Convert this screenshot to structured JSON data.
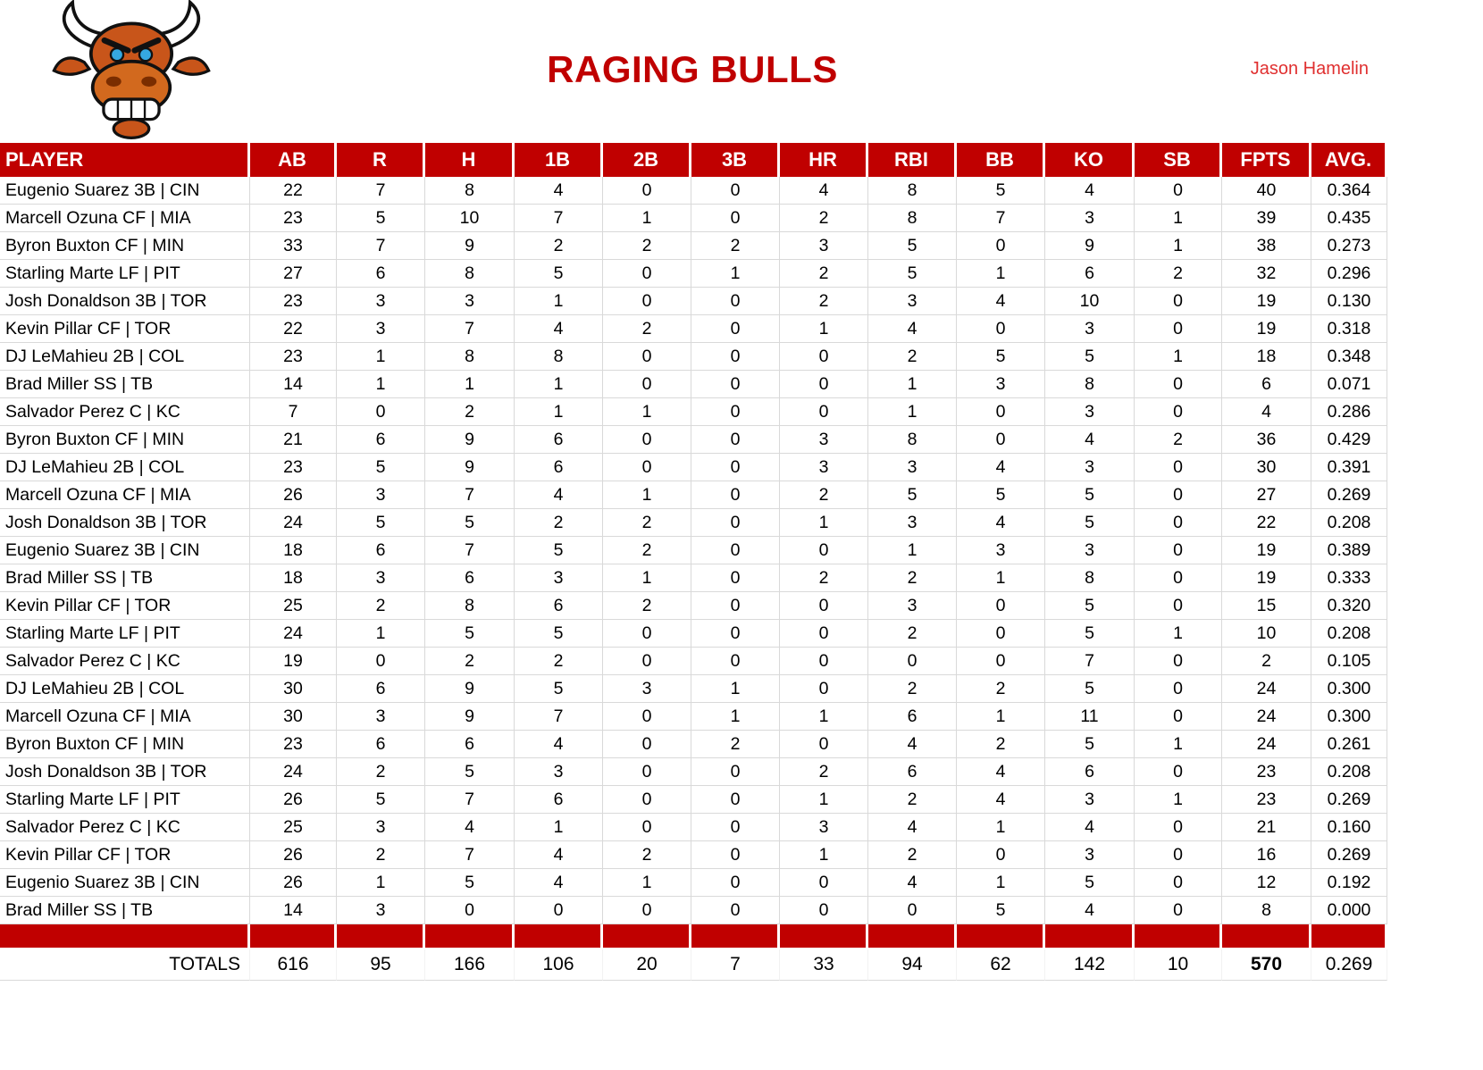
{
  "page": {
    "title": "RAGING BULLS",
    "owner": "Jason Hamelin"
  },
  "colors": {
    "accent": "#c00000",
    "grid": "#d9d9d9",
    "title_text": "#c00000",
    "owner_text": "#e03030"
  },
  "logo": {
    "icon": "bull-logo"
  },
  "table": {
    "columns": [
      "PLAYER",
      "AB",
      "R",
      "H",
      "1B",
      "2B",
      "3B",
      "HR",
      "RBI",
      "BB",
      "KO",
      "SB",
      "FPTS",
      "AVG."
    ],
    "rows": [
      [
        "Eugenio Suarez 3B | CIN",
        "22",
        "7",
        "8",
        "4",
        "0",
        "0",
        "4",
        "8",
        "5",
        "4",
        "0",
        "40",
        "0.364"
      ],
      [
        "Marcell Ozuna CF | MIA",
        "23",
        "5",
        "10",
        "7",
        "1",
        "0",
        "2",
        "8",
        "7",
        "3",
        "1",
        "39",
        "0.435"
      ],
      [
        "Byron Buxton CF | MIN",
        "33",
        "7",
        "9",
        "2",
        "2",
        "2",
        "3",
        "5",
        "0",
        "9",
        "1",
        "38",
        "0.273"
      ],
      [
        "Starling Marte LF | PIT",
        "27",
        "6",
        "8",
        "5",
        "0",
        "1",
        "2",
        "5",
        "1",
        "6",
        "2",
        "32",
        "0.296"
      ],
      [
        "Josh Donaldson 3B | TOR",
        "23",
        "3",
        "3",
        "1",
        "0",
        "0",
        "2",
        "3",
        "4",
        "10",
        "0",
        "19",
        "0.130"
      ],
      [
        "Kevin Pillar CF | TOR",
        "22",
        "3",
        "7",
        "4",
        "2",
        "0",
        "1",
        "4",
        "0",
        "3",
        "0",
        "19",
        "0.318"
      ],
      [
        "DJ LeMahieu 2B | COL",
        "23",
        "1",
        "8",
        "8",
        "0",
        "0",
        "0",
        "2",
        "5",
        "5",
        "1",
        "18",
        "0.348"
      ],
      [
        "Brad Miller SS | TB",
        "14",
        "1",
        "1",
        "1",
        "0",
        "0",
        "0",
        "1",
        "3",
        "8",
        "0",
        "6",
        "0.071"
      ],
      [
        "Salvador Perez C | KC",
        "7",
        "0",
        "2",
        "1",
        "1",
        "0",
        "0",
        "1",
        "0",
        "3",
        "0",
        "4",
        "0.286"
      ],
      [
        "Byron Buxton CF | MIN",
        "21",
        "6",
        "9",
        "6",
        "0",
        "0",
        "3",
        "8",
        "0",
        "4",
        "2",
        "36",
        "0.429"
      ],
      [
        "DJ LeMahieu 2B | COL",
        "23",
        "5",
        "9",
        "6",
        "0",
        "0",
        "3",
        "3",
        "4",
        "3",
        "0",
        "30",
        "0.391"
      ],
      [
        "Marcell Ozuna CF | MIA",
        "26",
        "3",
        "7",
        "4",
        "1",
        "0",
        "2",
        "5",
        "5",
        "5",
        "0",
        "27",
        "0.269"
      ],
      [
        "Josh Donaldson 3B | TOR",
        "24",
        "5",
        "5",
        "2",
        "2",
        "0",
        "1",
        "3",
        "4",
        "5",
        "0",
        "22",
        "0.208"
      ],
      [
        "Eugenio Suarez 3B | CIN",
        "18",
        "6",
        "7",
        "5",
        "2",
        "0",
        "0",
        "1",
        "3",
        "3",
        "0",
        "19",
        "0.389"
      ],
      [
        "Brad Miller SS | TB",
        "18",
        "3",
        "6",
        "3",
        "1",
        "0",
        "2",
        "2",
        "1",
        "8",
        "0",
        "19",
        "0.333"
      ],
      [
        "Kevin Pillar CF | TOR",
        "25",
        "2",
        "8",
        "6",
        "2",
        "0",
        "0",
        "3",
        "0",
        "5",
        "0",
        "15",
        "0.320"
      ],
      [
        "Starling Marte LF | PIT",
        "24",
        "1",
        "5",
        "5",
        "0",
        "0",
        "0",
        "2",
        "0",
        "5",
        "1",
        "10",
        "0.208"
      ],
      [
        "Salvador Perez C | KC",
        "19",
        "0",
        "2",
        "2",
        "0",
        "0",
        "0",
        "0",
        "0",
        "7",
        "0",
        "2",
        "0.105"
      ],
      [
        "DJ LeMahieu 2B | COL",
        "30",
        "6",
        "9",
        "5",
        "3",
        "1",
        "0",
        "2",
        "2",
        "5",
        "0",
        "24",
        "0.300"
      ],
      [
        "Marcell Ozuna CF | MIA",
        "30",
        "3",
        "9",
        "7",
        "0",
        "1",
        "1",
        "6",
        "1",
        "11",
        "0",
        "24",
        "0.300"
      ],
      [
        "Byron Buxton CF | MIN",
        "23",
        "6",
        "6",
        "4",
        "0",
        "2",
        "0",
        "4",
        "2",
        "5",
        "1",
        "24",
        "0.261"
      ],
      [
        "Josh Donaldson 3B | TOR",
        "24",
        "2",
        "5",
        "3",
        "0",
        "0",
        "2",
        "6",
        "4",
        "6",
        "0",
        "23",
        "0.208"
      ],
      [
        "Starling Marte LF | PIT",
        "26",
        "5",
        "7",
        "6",
        "0",
        "0",
        "1",
        "2",
        "4",
        "3",
        "1",
        "23",
        "0.269"
      ],
      [
        "Salvador Perez C | KC",
        "25",
        "3",
        "4",
        "1",
        "0",
        "0",
        "3",
        "4",
        "1",
        "4",
        "0",
        "21",
        "0.160"
      ],
      [
        "Kevin Pillar CF | TOR",
        "26",
        "2",
        "7",
        "4",
        "2",
        "0",
        "1",
        "2",
        "0",
        "3",
        "0",
        "16",
        "0.269"
      ],
      [
        "Eugenio Suarez 3B | CIN",
        "26",
        "1",
        "5",
        "4",
        "1",
        "0",
        "0",
        "4",
        "1",
        "5",
        "0",
        "12",
        "0.192"
      ],
      [
        "Brad Miller SS | TB",
        "14",
        "3",
        "0",
        "0",
        "0",
        "0",
        "0",
        "0",
        "5",
        "4",
        "0",
        "8",
        "0.000"
      ]
    ],
    "totals": {
      "label": "TOTALS",
      "values": [
        "616",
        "95",
        "166",
        "106",
        "20",
        "7",
        "33",
        "94",
        "62",
        "142",
        "10",
        "570",
        "0.269"
      ]
    }
  }
}
